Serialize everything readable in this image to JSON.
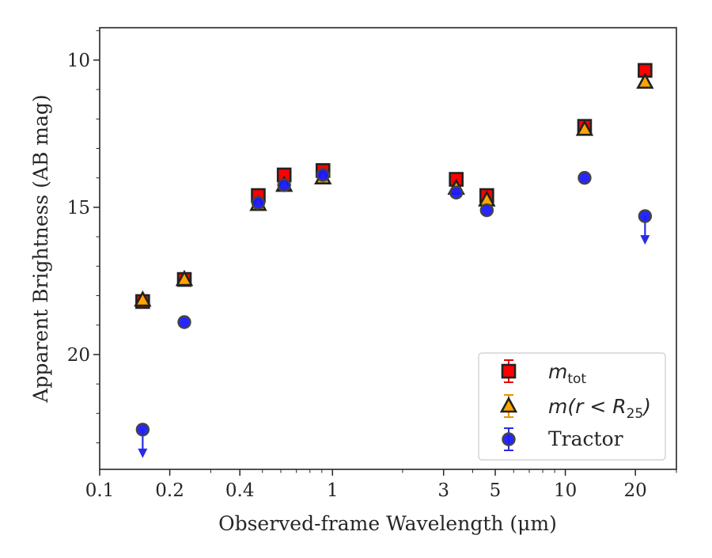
{
  "chart_data": {
    "type": "scatter",
    "title": "",
    "xlabel": "Observed-frame Wavelength (μm)",
    "ylabel": "Apparent Brightness (AB mag)",
    "xscale": "log",
    "xlim": [
      0.1,
      30
    ],
    "ylim": [
      23.9,
      8.9
    ],
    "y_inverted": true,
    "grid": false,
    "legend_position": "lower-right",
    "x_ticks": [
      0.1,
      0.2,
      0.4,
      1,
      3,
      5,
      10,
      20
    ],
    "x_tick_labels": [
      "0.1",
      "0.2",
      "0.4",
      "1",
      "3",
      "5",
      "10",
      "20"
    ],
    "y_ticks": [
      10,
      15,
      20
    ],
    "y_tick_labels": [
      "10",
      "15",
      "20"
    ],
    "series": [
      {
        "name": "m_tot",
        "legend_main": "m",
        "legend_sub": "tot",
        "marker": "square",
        "color": "#ff0000",
        "edge_color": "#222222",
        "x": [
          0.153,
          0.231,
          0.48,
          0.62,
          0.91,
          3.4,
          4.6,
          12.1,
          22.0
        ],
        "y": [
          18.2,
          17.45,
          14.6,
          13.9,
          13.75,
          14.05,
          14.6,
          12.25,
          10.35
        ]
      },
      {
        "name": "m(r<R_25)",
        "legend_main": "m(r < R",
        "legend_sub": "25",
        "legend_close": ")",
        "marker": "triangle",
        "color": "#ffa500",
        "edge_color": "#222222",
        "x": [
          0.153,
          0.231,
          0.48,
          0.62,
          0.91,
          3.4,
          4.6,
          12.1,
          22.0
        ],
        "y": [
          18.15,
          17.45,
          14.9,
          14.25,
          14.0,
          14.35,
          14.75,
          12.35,
          10.75
        ]
      },
      {
        "name": "Tractor",
        "legend_main": "Tractor",
        "marker": "circle",
        "color": "#1a1aff",
        "edge_color": "#444444",
        "x": [
          0.153,
          0.231,
          0.48,
          0.62,
          0.91,
          3.4,
          4.6,
          12.1,
          22.0
        ],
        "y": [
          22.55,
          18.9,
          14.85,
          14.25,
          13.9,
          14.5,
          15.1,
          14.0,
          15.3
        ],
        "upper_limit": [
          true,
          false,
          false,
          false,
          false,
          false,
          false,
          false,
          true
        ]
      }
    ]
  }
}
